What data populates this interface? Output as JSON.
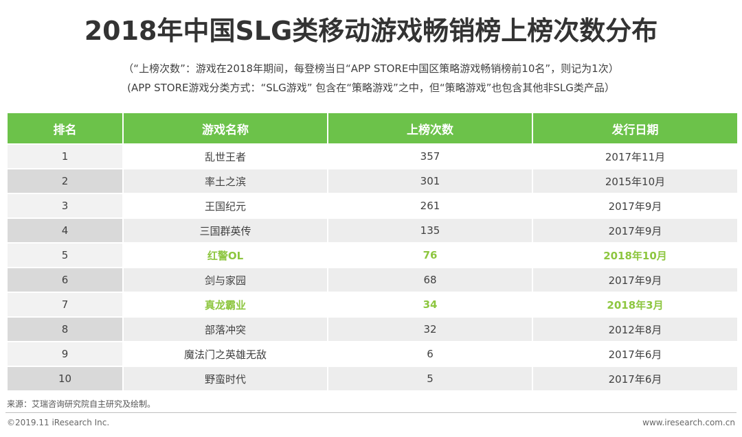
{
  "title": "2018年中国SLG类移动游戏畅销榜上榜次数分布",
  "notes": [
    "（“上榜次数”：游戏在2018年期间，每登榜当日“APP STORE中国区策略游戏畅销榜前10名”，则记为1次）",
    "(APP STORE游戏分类方式：“SLG游戏” 包含在“策略游戏”之中，但“策略游戏”也包含其他非SLG类产品）"
  ],
  "chart_data": {
    "type": "table",
    "columns": [
      "排名",
      "游戏名称",
      "上榜次数",
      "发行日期"
    ],
    "rows": [
      {
        "rank": "1",
        "name": "乱世王者",
        "count": "357",
        "date": "2017年11月",
        "highlight": false
      },
      {
        "rank": "2",
        "name": "率土之滨",
        "count": "301",
        "date": "2015年10月",
        "highlight": false
      },
      {
        "rank": "3",
        "name": "王国纪元",
        "count": "261",
        "date": "2017年9月",
        "highlight": false
      },
      {
        "rank": "4",
        "name": "三国群英传",
        "count": "135",
        "date": "2017年9月",
        "highlight": false
      },
      {
        "rank": "5",
        "name": "红警OL",
        "count": "76",
        "date": "2018年10月",
        "highlight": true
      },
      {
        "rank": "6",
        "name": "剑与家园",
        "count": "68",
        "date": "2017年9月",
        "highlight": false
      },
      {
        "rank": "7",
        "name": "真龙霸业",
        "count": "34",
        "date": "2018年3月",
        "highlight": true
      },
      {
        "rank": "8",
        "name": "部落冲突",
        "count": "32",
        "date": "2012年8月",
        "highlight": false
      },
      {
        "rank": "9",
        "name": "魔法门之英雄无敌",
        "count": "6",
        "date": "2017年6月",
        "highlight": false
      },
      {
        "rank": "10",
        "name": "野蛮时代",
        "count": "5",
        "date": "2017年6月",
        "highlight": false
      }
    ]
  },
  "colors": {
    "header_bg": "#6cc24a",
    "highlight_text": "#8dc63f"
  },
  "footer": {
    "source": "来源：艾瑞咨询研究院自主研究及绘制。",
    "copyright": "©2019.11 iResearch Inc.",
    "website": "www.iresearch.com.cn"
  }
}
